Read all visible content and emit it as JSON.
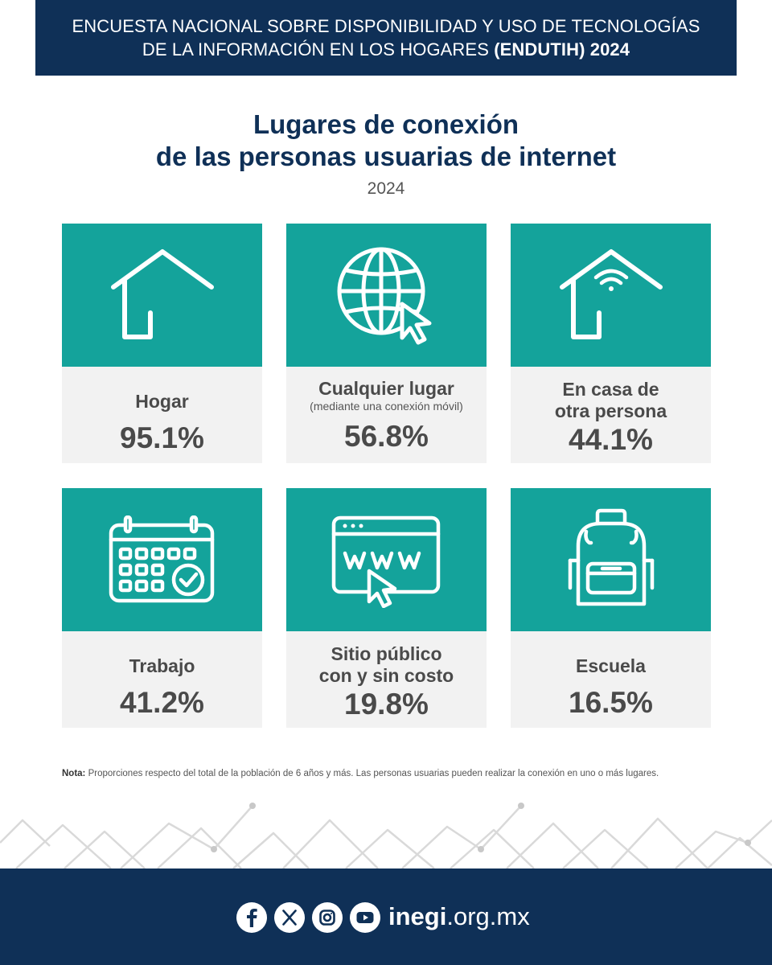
{
  "header": {
    "line1": "ENCUESTA NACIONAL SOBRE DISPONIBILIDAD Y USO DE TECNOLOGÍAS",
    "line2_regular": "DE LA INFORMACIÓN EN LOS HOGARES ",
    "line2_bold": "(ENDUTIH) 2024"
  },
  "title": {
    "line1": "Lugares de conexión",
    "line2": "de las personas usuarias de internet",
    "year": "2024"
  },
  "cards": [
    {
      "icon": "house-icon",
      "label": "Hogar",
      "value": "95.1%"
    },
    {
      "icon": "globe-cursor-icon",
      "label": "Cualquier lugar",
      "sublabel": "(mediante una conexión móvil)",
      "value": "56.8%"
    },
    {
      "icon": "house-wifi-icon",
      "label_line1": "En casa de",
      "label_line2": "otra persona",
      "value": "44.1%"
    },
    {
      "icon": "calendar-check-icon",
      "label": "Trabajo",
      "value": "41.2%"
    },
    {
      "icon": "browser-www-icon",
      "label_line1": "Sitio público",
      "label_line2": "con y sin costo",
      "value": "19.8%"
    },
    {
      "icon": "backpack-icon",
      "label": "Escuela",
      "value": "16.5%"
    }
  ],
  "note": {
    "prefix": "Nota:",
    "text": " Proporciones respecto del total de la población de 6 años y más. Las personas usuarias pueden realizar la conexión en uno o más lugares."
  },
  "footer": {
    "social_icons": [
      "facebook-icon",
      "x-icon",
      "instagram-icon",
      "youtube-icon"
    ],
    "site_bold": "inegi",
    "site_rest": ".org.mx"
  },
  "colors": {
    "navy": "#0f3057",
    "teal": "#14a39b",
    "card_bg": "#f2f2f2",
    "text_gray": "#4a4a4a"
  }
}
